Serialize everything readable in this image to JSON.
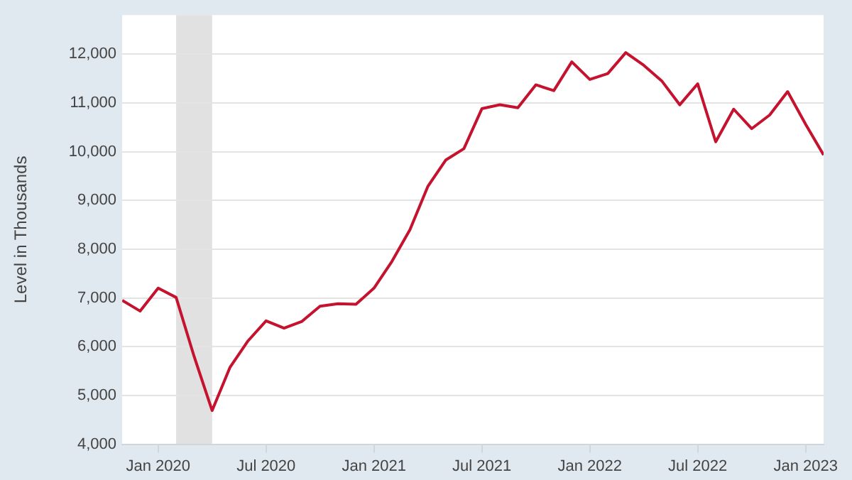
{
  "chart_data": {
    "type": "line",
    "ylabel": "Level in Thousands",
    "x": [
      "2019-11",
      "2019-12",
      "2020-01",
      "2020-02",
      "2020-03",
      "2020-04",
      "2020-05",
      "2020-06",
      "2020-07",
      "2020-08",
      "2020-09",
      "2020-10",
      "2020-11",
      "2020-12",
      "2021-01",
      "2021-02",
      "2021-03",
      "2021-04",
      "2021-05",
      "2021-06",
      "2021-07",
      "2021-08",
      "2021-09",
      "2021-10",
      "2021-11",
      "2021-12",
      "2022-01",
      "2022-02",
      "2022-03",
      "2022-04",
      "2022-05",
      "2022-06",
      "2022-07",
      "2022-08",
      "2022-09",
      "2022-10",
      "2022-11",
      "2022-12",
      "2023-01",
      "2023-02"
    ],
    "series": [
      {
        "color": "#c4122f",
        "values": [
          6950,
          6730,
          7200,
          7010,
          5800,
          4690,
          5580,
          6120,
          6530,
          6380,
          6520,
          6830,
          6880,
          6870,
          7200,
          7750,
          8400,
          9290,
          9830,
          10060,
          10880,
          10960,
          10900,
          11370,
          11250,
          11840,
          11480,
          11600,
          12030,
          11770,
          11450,
          10960,
          11390,
          10200,
          10870,
          10470,
          10750,
          11230,
          10560,
          9930
        ]
      }
    ],
    "xlim": [
      "2019-11",
      "2023-02"
    ],
    "xticks": [
      {
        "value": "2020-01",
        "label": "Jan 2020"
      },
      {
        "value": "2020-07",
        "label": "Jul 2020"
      },
      {
        "value": "2021-01",
        "label": "Jan 2021"
      },
      {
        "value": "2021-07",
        "label": "Jul 2021"
      },
      {
        "value": "2022-01",
        "label": "Jan 2022"
      },
      {
        "value": "2022-07",
        "label": "Jul 2022"
      },
      {
        "value": "2023-01",
        "label": "Jan 2023"
      }
    ],
    "ylim": [
      4000,
      12800
    ],
    "yticks": [
      {
        "value": 4000,
        "label": "4,000"
      },
      {
        "value": 5000,
        "label": "5,000"
      },
      {
        "value": 6000,
        "label": "6,000"
      },
      {
        "value": 7000,
        "label": "7,000"
      },
      {
        "value": 8000,
        "label": "8,000"
      },
      {
        "value": 9000,
        "label": "9,000"
      },
      {
        "value": 10000,
        "label": "10,000"
      },
      {
        "value": 11000,
        "label": "11,000"
      },
      {
        "value": 12000,
        "label": "12,000"
      }
    ],
    "bands": [
      {
        "axis": "x",
        "from": "2020-02",
        "to": "2020-04",
        "color": "#e1e1e1"
      }
    ],
    "grid": "y",
    "legend": false,
    "marker": "none",
    "line_style": "solid"
  }
}
